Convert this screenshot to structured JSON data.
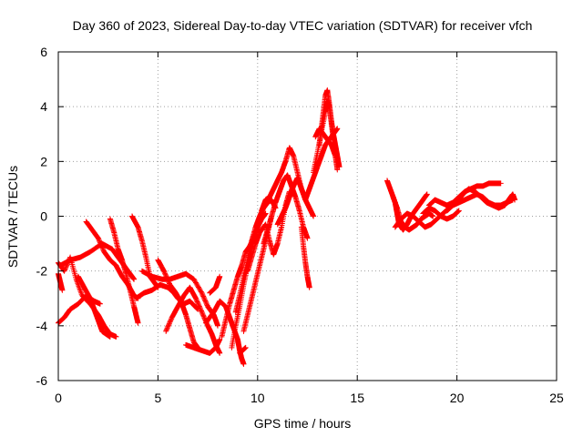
{
  "chart_data": {
    "type": "scatter",
    "title": "Day 360 of 2023, Sidereal Day-to-day VTEC variation (SDTVAR) for receiver vfch",
    "xlabel": "GPS time / hours",
    "ylabel": "SDTVAR / TECUs",
    "xlim": [
      0,
      25
    ],
    "ylim": [
      -6,
      6
    ],
    "x_ticks": [
      "0",
      "5",
      "10",
      "15",
      "20",
      "25"
    ],
    "y_ticks": [
      "-6",
      "-4",
      "-2",
      "0",
      "2",
      "4",
      "6"
    ],
    "grid": true,
    "marker": "+",
    "series_color": "#ff0000",
    "tracks": [
      [
        [
          0.0,
          -1.7
        ],
        [
          0.3,
          -2.0
        ],
        [
          0.6,
          -1.5
        ],
        [
          0.9,
          -2.3
        ],
        [
          1.2,
          -2.9
        ],
        [
          1.6,
          -3.2
        ],
        [
          2.0,
          -3.6
        ],
        [
          2.3,
          -4.0
        ],
        [
          2.6,
          -4.3
        ],
        [
          2.9,
          -4.4
        ]
      ],
      [
        [
          0.0,
          -3.9
        ],
        [
          0.3,
          -3.7
        ],
        [
          0.6,
          -3.4
        ],
        [
          1.0,
          -3.2
        ],
        [
          1.4,
          -2.9
        ],
        [
          1.8,
          -3.1
        ],
        [
          2.1,
          -3.2
        ]
      ],
      [
        [
          0.0,
          -2.1
        ],
        [
          0.1,
          -2.4
        ],
        [
          0.2,
          -2.7
        ]
      ],
      [
        [
          1.0,
          -2.2
        ],
        [
          1.3,
          -2.6
        ],
        [
          1.6,
          -3.0
        ],
        [
          1.8,
          -3.4
        ],
        [
          2.0,
          -3.8
        ],
        [
          2.2,
          -4.2
        ],
        [
          2.4,
          -4.3
        ],
        [
          2.6,
          -4.4
        ]
      ],
      [
        [
          1.4,
          -0.2
        ],
        [
          1.7,
          -0.5
        ],
        [
          2.0,
          -0.8
        ],
        [
          2.3,
          -1.3
        ],
        [
          2.6,
          -1.6
        ],
        [
          2.9,
          -1.8
        ],
        [
          3.2,
          -2.2
        ],
        [
          3.5,
          -2.5
        ],
        [
          3.8,
          -2.9
        ],
        [
          4.0,
          -3.0
        ]
      ],
      [
        [
          2.6,
          -0.1
        ],
        [
          2.8,
          -0.6
        ],
        [
          3.0,
          -1.2
        ],
        [
          3.2,
          -1.6
        ],
        [
          3.4,
          -2.1
        ],
        [
          3.6,
          -2.7
        ],
        [
          3.8,
          -3.3
        ],
        [
          3.9,
          -3.6
        ],
        [
          4.0,
          -3.9
        ]
      ],
      [
        [
          0.1,
          -1.8
        ],
        [
          0.6,
          -1.6
        ],
        [
          1.1,
          -1.5
        ],
        [
          1.6,
          -1.3
        ],
        [
          2.2,
          -1.0
        ],
        [
          2.7,
          -1.2
        ],
        [
          3.0,
          -1.5
        ],
        [
          3.3,
          -1.8
        ],
        [
          3.6,
          -2.1
        ],
        [
          3.8,
          -2.3
        ]
      ],
      [
        [
          3.7,
          0.0
        ],
        [
          4.0,
          -0.4
        ],
        [
          4.2,
          -0.9
        ],
        [
          4.4,
          -1.5
        ],
        [
          4.6,
          -2.2
        ],
        [
          4.8,
          -2.4
        ],
        [
          5.0,
          -2.6
        ]
      ],
      [
        [
          3.9,
          -3.0
        ],
        [
          4.3,
          -2.8
        ],
        [
          4.7,
          -2.7
        ],
        [
          5.1,
          -2.5
        ],
        [
          5.5,
          -2.6
        ],
        [
          5.8,
          -2.8
        ],
        [
          6.0,
          -3.0
        ],
        [
          6.3,
          -3.2
        ],
        [
          6.6,
          -3.1
        ],
        [
          7.0,
          -3.4
        ]
      ],
      [
        [
          4.2,
          -2.0
        ],
        [
          4.7,
          -2.2
        ],
        [
          5.2,
          -2.3
        ],
        [
          5.6,
          -2.3
        ],
        [
          6.0,
          -2.2
        ],
        [
          6.4,
          -2.1
        ],
        [
          6.8,
          -2.3
        ],
        [
          7.2,
          -2.8
        ],
        [
          7.5,
          -3.3
        ],
        [
          7.8,
          -3.6
        ],
        [
          8.0,
          -4.0
        ]
      ],
      [
        [
          5.0,
          -1.6
        ],
        [
          5.3,
          -2.0
        ],
        [
          5.6,
          -2.5
        ],
        [
          5.9,
          -2.8
        ],
        [
          6.2,
          -3.2
        ],
        [
          6.4,
          -3.6
        ],
        [
          6.6,
          -4.1
        ],
        [
          6.8,
          -4.6
        ],
        [
          7.0,
          -4.8
        ]
      ],
      [
        [
          5.4,
          -4.2
        ],
        [
          5.7,
          -3.7
        ],
        [
          6.0,
          -3.3
        ],
        [
          6.3,
          -2.9
        ],
        [
          6.6,
          -2.6
        ],
        [
          6.9,
          -3.0
        ],
        [
          7.2,
          -3.5
        ],
        [
          7.5,
          -4.0
        ],
        [
          7.7,
          -4.3
        ],
        [
          7.9,
          -4.7
        ],
        [
          8.1,
          -5.0
        ]
      ],
      [
        [
          6.4,
          -4.7
        ],
        [
          6.8,
          -4.8
        ],
        [
          7.2,
          -4.9
        ],
        [
          7.6,
          -5.0
        ],
        [
          7.9,
          -4.8
        ],
        [
          8.1,
          -4.5
        ]
      ],
      [
        [
          7.4,
          -3.9
        ],
        [
          7.8,
          -3.5
        ],
        [
          8.1,
          -3.1
        ],
        [
          8.4,
          -3.3
        ],
        [
          8.6,
          -3.7
        ],
        [
          8.8,
          -4.1
        ],
        [
          9.0,
          -4.5
        ],
        [
          9.1,
          -4.9
        ],
        [
          9.2,
          -5.2
        ],
        [
          9.3,
          -5.4
        ]
      ],
      [
        [
          7.6,
          -2.8
        ],
        [
          7.9,
          -2.6
        ],
        [
          8.1,
          -2.2
        ]
      ],
      [
        [
          9.1,
          -5.0
        ],
        [
          9.4,
          -4.8
        ]
      ],
      [
        [
          8.2,
          -4.4
        ],
        [
          8.4,
          -3.8
        ],
        [
          8.6,
          -3.2
        ],
        [
          8.8,
          -2.7
        ],
        [
          9.0,
          -2.2
        ],
        [
          9.2,
          -1.8
        ],
        [
          9.4,
          -1.3
        ],
        [
          9.6,
          -1.1
        ],
        [
          9.8,
          -0.8
        ],
        [
          10.0,
          -0.4
        ],
        [
          10.2,
          -0.1
        ],
        [
          10.4,
          0.1
        ]
      ],
      [
        [
          8.7,
          -4.8
        ],
        [
          8.9,
          -4.0
        ],
        [
          9.1,
          -3.3
        ],
        [
          9.3,
          -2.5
        ],
        [
          9.5,
          -1.8
        ],
        [
          9.7,
          -1.2
        ],
        [
          9.9,
          -0.6
        ],
        [
          10.1,
          -0.2
        ]
      ],
      [
        [
          8.9,
          -3.5
        ],
        [
          9.1,
          -2.9
        ],
        [
          9.3,
          -2.2
        ],
        [
          9.5,
          -1.6
        ],
        [
          9.7,
          -0.9
        ],
        [
          9.9,
          -0.4
        ],
        [
          10.1,
          0.0
        ],
        [
          10.3,
          0.3
        ],
        [
          10.5,
          0.5
        ],
        [
          10.7,
          0.6
        ],
        [
          10.9,
          0.3
        ]
      ],
      [
        [
          9.3,
          -4.2
        ],
        [
          9.5,
          -3.6
        ],
        [
          9.7,
          -3.0
        ],
        [
          9.9,
          -2.4
        ],
        [
          10.1,
          -1.8
        ],
        [
          10.3,
          -1.2
        ],
        [
          10.5,
          -0.6
        ],
        [
          10.7,
          0.0
        ]
      ],
      [
        [
          9.5,
          -2.0
        ],
        [
          9.7,
          -1.5
        ],
        [
          9.9,
          -1.0
        ],
        [
          10.1,
          -0.6
        ],
        [
          10.4,
          -0.3
        ],
        [
          10.6,
          -0.9
        ],
        [
          10.8,
          -1.4
        ],
        [
          11.0,
          -1.0
        ],
        [
          11.2,
          -0.4
        ],
        [
          11.4,
          0.4
        ],
        [
          11.6,
          0.9
        ]
      ],
      [
        [
          10.2,
          0.2
        ],
        [
          10.4,
          0.6
        ],
        [
          10.6,
          0.7
        ],
        [
          10.8,
          1.0
        ],
        [
          11.0,
          1.3
        ],
        [
          11.2,
          1.6
        ],
        [
          11.4,
          2.0
        ],
        [
          11.6,
          2.5
        ],
        [
          11.8,
          2.2
        ],
        [
          12.0,
          1.6
        ],
        [
          12.2,
          1.0
        ],
        [
          12.4,
          0.6
        ]
      ],
      [
        [
          10.3,
          -1.0
        ],
        [
          10.5,
          -0.5
        ],
        [
          10.7,
          0.0
        ],
        [
          10.9,
          0.5
        ],
        [
          11.1,
          0.9
        ],
        [
          11.3,
          1.3
        ],
        [
          11.5,
          1.5
        ],
        [
          11.7,
          1.1
        ],
        [
          11.9,
          0.7
        ],
        [
          12.1,
          0.2
        ],
        [
          12.3,
          -0.4
        ],
        [
          12.5,
          -0.8
        ]
      ],
      [
        [
          11.0,
          -0.3
        ],
        [
          11.2,
          0.0
        ],
        [
          11.4,
          0.3
        ],
        [
          11.6,
          0.7
        ],
        [
          11.8,
          1.1
        ],
        [
          12.0,
          1.4
        ],
        [
          12.2,
          1.0
        ],
        [
          12.4,
          0.6
        ],
        [
          12.6,
          0.3
        ],
        [
          12.8,
          0.0
        ]
      ],
      [
        [
          12.2,
          -0.4
        ],
        [
          12.3,
          -1.1
        ],
        [
          12.4,
          -1.7
        ],
        [
          12.5,
          -2.2
        ],
        [
          12.6,
          -2.6
        ]
      ],
      [
        [
          12.4,
          0.6
        ],
        [
          12.6,
          1.0
        ],
        [
          12.8,
          1.4
        ],
        [
          13.0,
          1.8
        ],
        [
          13.2,
          2.2
        ],
        [
          13.4,
          2.6
        ],
        [
          13.6,
          2.8
        ],
        [
          13.8,
          3.0
        ],
        [
          14.0,
          3.2
        ]
      ],
      [
        [
          12.8,
          1.6
        ],
        [
          13.0,
          2.3
        ],
        [
          13.2,
          3.1
        ],
        [
          13.4,
          3.8
        ],
        [
          13.5,
          4.2
        ],
        [
          13.6,
          4.0
        ],
        [
          13.7,
          3.4
        ],
        [
          13.8,
          2.8
        ]
      ],
      [
        [
          13.1,
          2.6
        ],
        [
          13.2,
          3.2
        ],
        [
          13.3,
          3.8
        ],
        [
          13.4,
          4.4
        ],
        [
          13.5,
          4.6
        ],
        [
          13.6,
          4.1
        ],
        [
          13.7,
          3.5
        ],
        [
          13.8,
          3.0
        ],
        [
          13.9,
          2.6
        ],
        [
          14.0,
          2.2
        ],
        [
          14.1,
          1.8
        ]
      ],
      [
        [
          12.9,
          2.9
        ],
        [
          13.1,
          3.2
        ],
        [
          13.3,
          3.0
        ],
        [
          13.5,
          2.8
        ],
        [
          13.7,
          2.6
        ],
        [
          13.9,
          2.2
        ],
        [
          14.0,
          1.7
        ]
      ],
      [
        [
          16.5,
          1.3
        ],
        [
          16.7,
          0.9
        ],
        [
          16.9,
          0.5
        ],
        [
          17.0,
          0.1
        ],
        [
          17.1,
          -0.3
        ],
        [
          17.3,
          -0.5
        ],
        [
          17.5,
          -0.3
        ],
        [
          17.7,
          0.0
        ],
        [
          17.9,
          0.2
        ],
        [
          18.1,
          0.4
        ],
        [
          18.3,
          0.6
        ],
        [
          18.5,
          0.8
        ]
      ],
      [
        [
          16.8,
          0.7
        ],
        [
          17.0,
          0.3
        ],
        [
          17.2,
          -0.2
        ],
        [
          17.4,
          -0.4
        ],
        [
          17.6,
          -0.5
        ],
        [
          17.8,
          -0.4
        ],
        [
          18.0,
          -0.3
        ],
        [
          18.2,
          -0.1
        ],
        [
          18.4,
          0.0
        ],
        [
          18.6,
          0.1
        ],
        [
          18.8,
          0.0
        ]
      ],
      [
        [
          16.9,
          -0.4
        ],
        [
          17.2,
          -0.1
        ],
        [
          17.5,
          0.1
        ],
        [
          17.8,
          0.0
        ],
        [
          18.1,
          -0.2
        ],
        [
          18.4,
          -0.4
        ],
        [
          18.7,
          -0.3
        ],
        [
          19.0,
          -0.1
        ],
        [
          19.3,
          0.1
        ],
        [
          19.6,
          0.3
        ]
      ],
      [
        [
          18.6,
          0.4
        ],
        [
          18.9,
          0.6
        ],
        [
          19.2,
          0.5
        ],
        [
          19.5,
          0.4
        ],
        [
          19.8,
          0.5
        ],
        [
          20.1,
          0.7
        ],
        [
          20.4,
          0.9
        ],
        [
          20.7,
          1.0
        ],
        [
          21.0,
          1.1
        ],
        [
          21.3,
          1.1
        ],
        [
          21.6,
          1.2
        ],
        [
          21.9,
          1.2
        ],
        [
          22.2,
          1.2
        ]
      ],
      [
        [
          19.5,
          0.2
        ],
        [
          19.8,
          0.4
        ],
        [
          20.1,
          0.5
        ],
        [
          20.4,
          0.6
        ],
        [
          20.7,
          0.7
        ],
        [
          21.0,
          0.8
        ],
        [
          21.3,
          0.7
        ],
        [
          21.6,
          0.5
        ],
        [
          21.9,
          0.4
        ],
        [
          22.2,
          0.4
        ],
        [
          22.5,
          0.5
        ],
        [
          22.8,
          0.6
        ]
      ],
      [
        [
          20.0,
          0.5
        ],
        [
          20.3,
          0.8
        ],
        [
          20.6,
          1.0
        ],
        [
          20.9,
          0.9
        ],
        [
          21.2,
          0.7
        ],
        [
          21.5,
          0.5
        ],
        [
          21.8,
          0.4
        ],
        [
          22.1,
          0.3
        ],
        [
          22.4,
          0.4
        ],
        [
          22.6,
          0.6
        ],
        [
          22.8,
          0.8
        ],
        [
          22.9,
          0.6
        ]
      ],
      [
        [
          18.3,
          0.1
        ],
        [
          18.6,
          0.3
        ],
        [
          18.9,
          0.2
        ],
        [
          19.2,
          0.0
        ],
        [
          19.5,
          -0.1
        ],
        [
          19.8,
          0.0
        ],
        [
          20.1,
          0.2
        ]
      ]
    ]
  }
}
